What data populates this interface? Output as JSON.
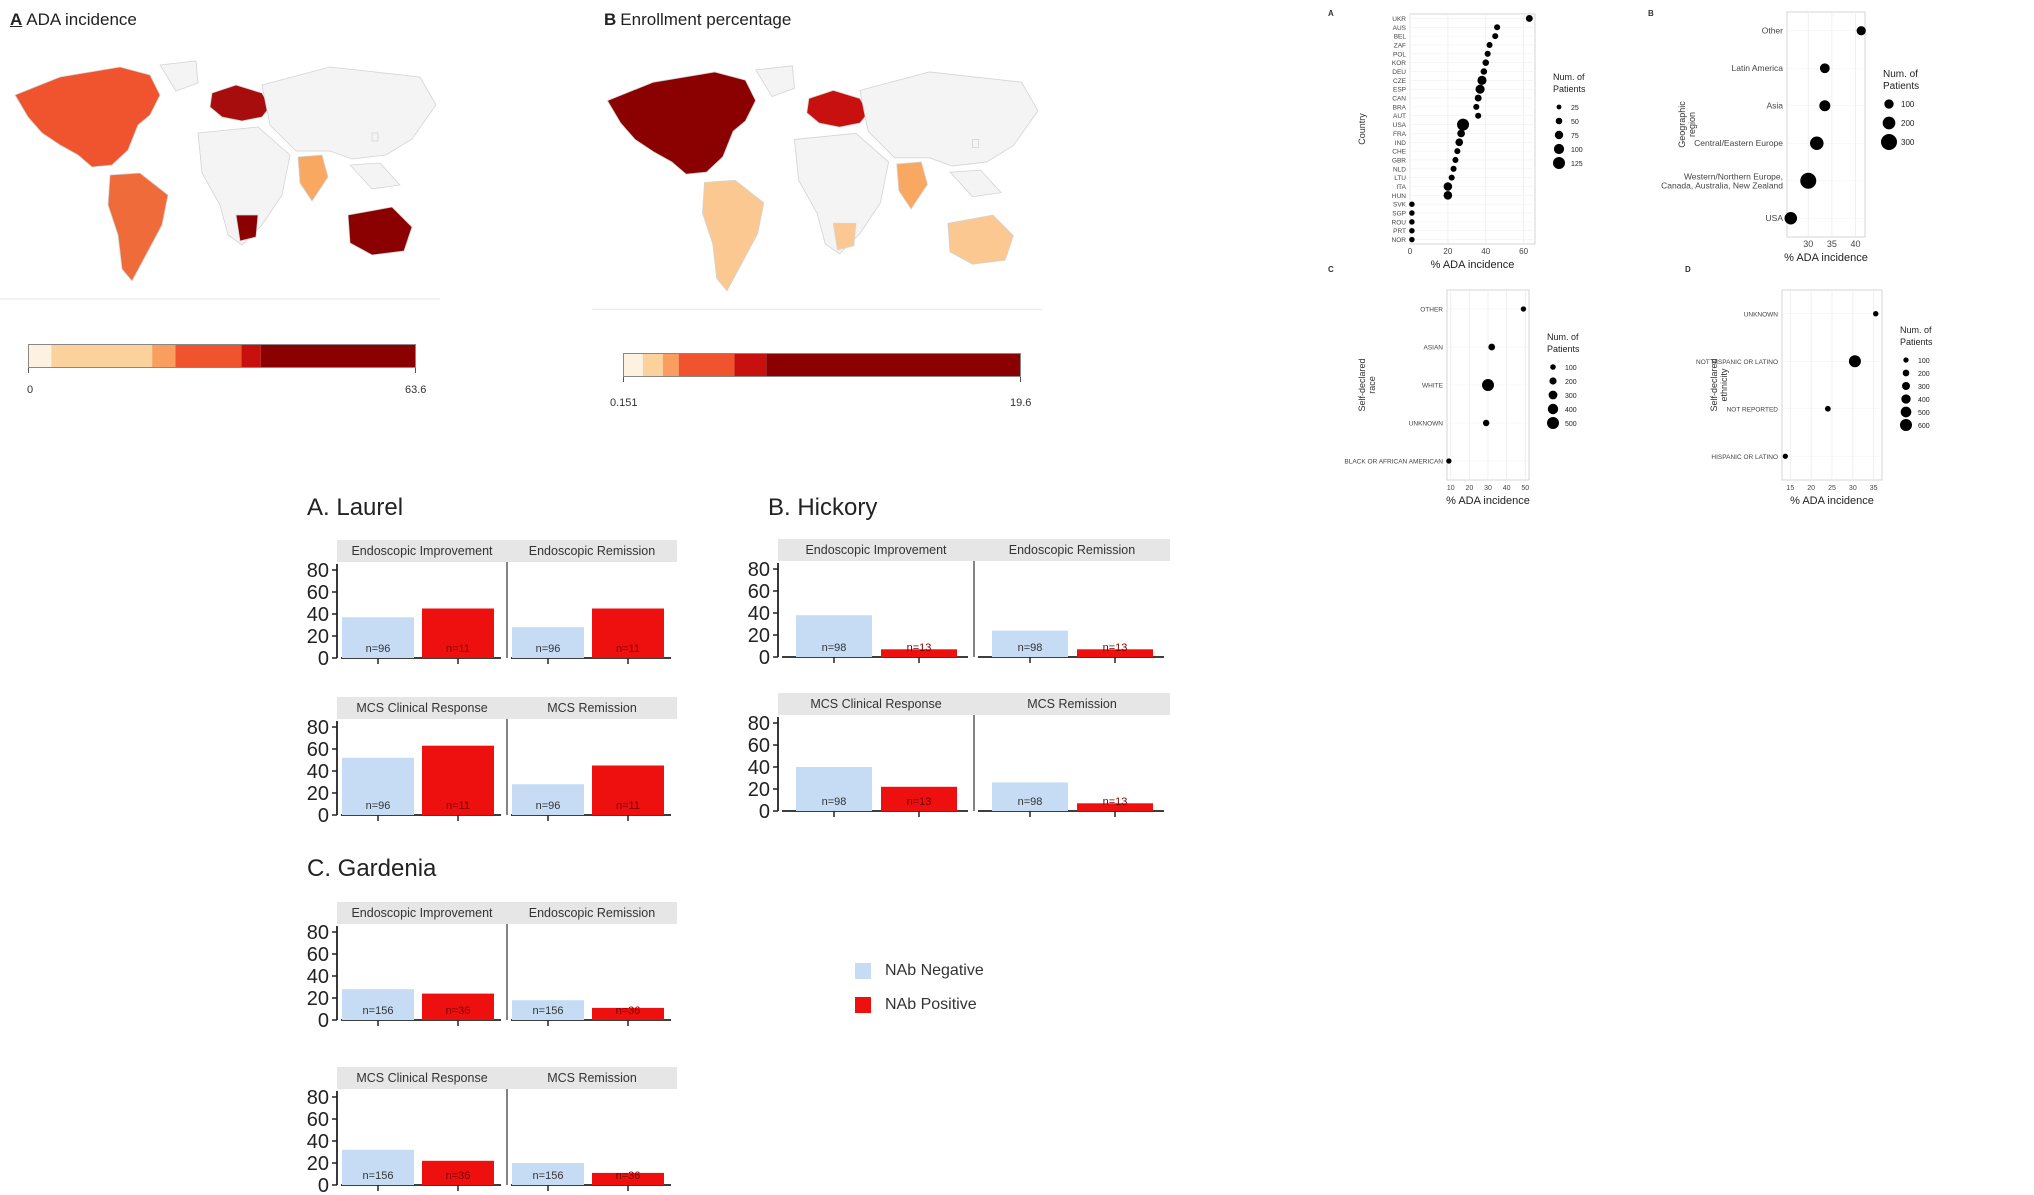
{
  "maps": [
    {
      "letter": "A",
      "title": "ADA incidence",
      "scale_min": "0",
      "scale_max": "63.6",
      "scale_colors": [
        "#fdf1e0",
        "#fbd29c",
        "#f99e5f",
        "#f0542f",
        "#c8110f",
        "#8b0000"
      ],
      "scale_fractions": [
        0.06,
        0.32,
        0.38,
        0.55,
        0.6,
        1.0
      ],
      "regions": [
        {
          "name": "North America",
          "color": "#f0542f"
        },
        {
          "name": "South America",
          "color": "#f06b3a"
        },
        {
          "name": "Europe",
          "color": "#a80d0d"
        },
        {
          "name": "Africa South",
          "color": "#8b0000"
        },
        {
          "name": "India",
          "color": "#f9a861"
        },
        {
          "name": "Australia",
          "color": "#8b0000"
        }
      ]
    },
    {
      "letter": "B",
      "title": "Enrollment percentage",
      "scale_min": "0.151",
      "scale_max": "19.6",
      "scale_colors": [
        "#fdf1e0",
        "#fbd29c",
        "#f99e5f",
        "#f0542f",
        "#c8110f",
        "#8b0000"
      ],
      "scale_fractions": [
        0.05,
        0.1,
        0.14,
        0.28,
        0.36,
        1.0
      ],
      "regions": [
        {
          "name": "North America",
          "color": "#8b0000"
        },
        {
          "name": "South America",
          "color": "#fbc891"
        },
        {
          "name": "Europe",
          "color": "#c8110f"
        },
        {
          "name": "Africa South",
          "color": "#fbc891"
        },
        {
          "name": "India",
          "color": "#f9a861"
        },
        {
          "name": "Australia",
          "color": "#fbc891"
        }
      ]
    }
  ],
  "dotplots": [
    {
      "letter": "A",
      "ylabel": "Country",
      "xlabel": "% ADA incidence",
      "xticks": [
        "0",
        "20",
        "40",
        "60"
      ],
      "xlim": [
        0,
        66
      ],
      "legend_title": "Num. of Patients",
      "legend_labels": [
        "25",
        "50",
        "75",
        "100",
        "125"
      ],
      "size_range": [
        1.5,
        6
      ],
      "categories": [
        "UKR",
        "AUS",
        "BEL",
        "ZAF",
        "POL",
        "KOR",
        "DEU",
        "CZE",
        "ESP",
        "CAN",
        "BRA",
        "AUT",
        "USA",
        "FRA",
        "IND",
        "CHE",
        "GBR",
        "NLD",
        "LTU",
        "ITA",
        "HUN",
        "SVK",
        "SGP",
        "ROU",
        "PRT",
        "NOR"
      ],
      "values": [
        63,
        46,
        45,
        42,
        41,
        40,
        39,
        38,
        37,
        36,
        35,
        36,
        28,
        27,
        26,
        25,
        24,
        23,
        22,
        20,
        20,
        1,
        1,
        1,
        1,
        1
      ],
      "sizes": [
        25,
        15,
        15,
        15,
        15,
        20,
        20,
        60,
        60,
        25,
        15,
        15,
        130,
        35,
        35,
        15,
        15,
        15,
        15,
        50,
        50,
        10,
        10,
        10,
        10,
        10
      ]
    },
    {
      "letter": "B",
      "ylabel": "Geographic region",
      "xlabel": "% ADA incidence",
      "xticks": [
        "30",
        "35",
        "40"
      ],
      "xlim": [
        25.5,
        42
      ],
      "legend_title": "Num. of Patients",
      "legend_labels": [
        "100",
        "200",
        "300"
      ],
      "size_range": [
        3,
        8
      ],
      "categories": [
        "Other",
        "Latin America",
        "Asia",
        "Central/Eastern Europe",
        "Western/Northern Europe, Canada, Australia, New Zealand",
        "USA"
      ],
      "values": [
        41.2,
        33.5,
        33.5,
        31.8,
        30.0,
        26.3
      ],
      "sizes": [
        30,
        40,
        70,
        160,
        280,
        120
      ]
    },
    {
      "letter": "C",
      "ylabel": "Self-declared race",
      "xlabel": "% ADA incidence",
      "xticks": [
        "10",
        "20",
        "30",
        "40",
        "50"
      ],
      "xlim": [
        8,
        52
      ],
      "legend_title": "Num. of Patients",
      "legend_labels": [
        "100",
        "200",
        "300",
        "400",
        "500"
      ],
      "size_range": [
        2,
        6
      ],
      "categories": [
        "OTHER",
        "ASIAN",
        "WHITE",
        "UNKNOWN",
        "BLACK OR AFRICAN AMERICAN"
      ],
      "values": [
        49,
        32,
        30,
        29,
        9
      ],
      "sizes": [
        15,
        60,
        520,
        50,
        15
      ]
    },
    {
      "letter": "D",
      "ylabel": "Self-declared ethnicity",
      "xlabel": "% ADA incidence",
      "xticks": [
        "15",
        "20",
        "25",
        "30",
        "35"
      ],
      "xlim": [
        13,
        37
      ],
      "legend_title": "Num. of Patients",
      "legend_labels": [
        "100",
        "200",
        "300",
        "400",
        "500",
        "600"
      ],
      "size_range": [
        2,
        6
      ],
      "categories": [
        "UNKNOWN",
        "NOT HISPANIC OR LATINO",
        "NOT REPORTED",
        "HISPANIC OR LATINO"
      ],
      "values": [
        35.5,
        30.5,
        24.0,
        13.8
      ],
      "sizes": [
        20,
        600,
        30,
        15
      ]
    }
  ],
  "chart_data": [
    {
      "type": "bar",
      "title": "Endoscopic Improvement",
      "categories": [
        "NAb Negative",
        "NAb Positive"
      ],
      "values": [
        37,
        45
      ],
      "n_labels": [
        "n=96",
        "n=11"
      ],
      "ylim": [
        0,
        80
      ]
    },
    {
      "type": "bar",
      "title": "Endoscopic Remission",
      "categories": [
        "NAb Negative",
        "NAb Positive"
      ],
      "values": [
        28,
        45
      ],
      "n_labels": [
        "n=96",
        "n=11"
      ],
      "ylim": [
        0,
        80
      ]
    },
    {
      "type": "bar",
      "title": "MCS Clinical Response",
      "categories": [
        "NAb Negative",
        "NAb Positive"
      ],
      "values": [
        52,
        63
      ],
      "n_labels": [
        "n=96",
        "n=11"
      ],
      "ylim": [
        0,
        80
      ]
    },
    {
      "type": "bar",
      "title": "MCS Remission",
      "categories": [
        "NAb Negative",
        "NAb Positive"
      ],
      "values": [
        28,
        45
      ],
      "n_labels": [
        "n=96",
        "n=11"
      ],
      "ylim": [
        0,
        80
      ]
    },
    {
      "type": "bar",
      "title": "Endoscopic Improvement",
      "categories": [
        "NAb Negative",
        "NAb Positive"
      ],
      "values": [
        38,
        7
      ],
      "n_labels": [
        "n=98",
        "n=13"
      ],
      "ylim": [
        0,
        80
      ]
    },
    {
      "type": "bar",
      "title": "Endoscopic Remission",
      "categories": [
        "NAb Negative",
        "NAb Positive"
      ],
      "values": [
        24,
        7
      ],
      "n_labels": [
        "n=98",
        "n=13"
      ],
      "ylim": [
        0,
        80
      ]
    },
    {
      "type": "bar",
      "title": "MCS Clinical Response",
      "categories": [
        "NAb Negative",
        "NAb Positive"
      ],
      "values": [
        40,
        22
      ],
      "n_labels": [
        "n=98",
        "n=13"
      ],
      "ylim": [
        0,
        80
      ]
    },
    {
      "type": "bar",
      "title": "MCS Remission",
      "categories": [
        "NAb Negative",
        "NAb Positive"
      ],
      "values": [
        26,
        7
      ],
      "n_labels": [
        "n=98",
        "n=13"
      ],
      "ylim": [
        0,
        80
      ]
    },
    {
      "type": "bar",
      "title": "Endoscopic Improvement",
      "categories": [
        "NAb Negative",
        "NAb Positive"
      ],
      "values": [
        28,
        24
      ],
      "n_labels": [
        "n=156",
        "n=36"
      ],
      "ylim": [
        0,
        80
      ]
    },
    {
      "type": "bar",
      "title": "Endoscopic Remission",
      "categories": [
        "NAb Negative",
        "NAb Positive"
      ],
      "values": [
        18,
        11
      ],
      "n_labels": [
        "n=156",
        "n=36"
      ],
      "ylim": [
        0,
        80
      ]
    },
    {
      "type": "bar",
      "title": "MCS Clinical Response",
      "categories": [
        "NAb Negative",
        "NAb Positive"
      ],
      "values": [
        32,
        22
      ],
      "n_labels": [
        "n=156",
        "n=36"
      ],
      "ylim": [
        0,
        80
      ]
    },
    {
      "type": "bar",
      "title": "MCS Remission",
      "categories": [
        "NAb Negative",
        "NAb Positive"
      ],
      "values": [
        20,
        11
      ],
      "n_labels": [
        "n=156",
        "n=36"
      ],
      "ylim": [
        0,
        80
      ]
    }
  ],
  "bar_yticks": [
    "0",
    "20",
    "40",
    "60",
    "80"
  ],
  "bar_groups": [
    "A. Laurel",
    "B. Hickory",
    "C. Gardenia"
  ],
  "bar_legend": {
    "items": [
      {
        "label": "NAb Negative",
        "color": "#c6dcf5"
      },
      {
        "label": "NAb Positive",
        "color": "#ee0f0f"
      }
    ]
  },
  "colors": {
    "negative": "#c6dcf5",
    "positive": "#ee0f0f",
    "header": "#e6e6e6"
  }
}
